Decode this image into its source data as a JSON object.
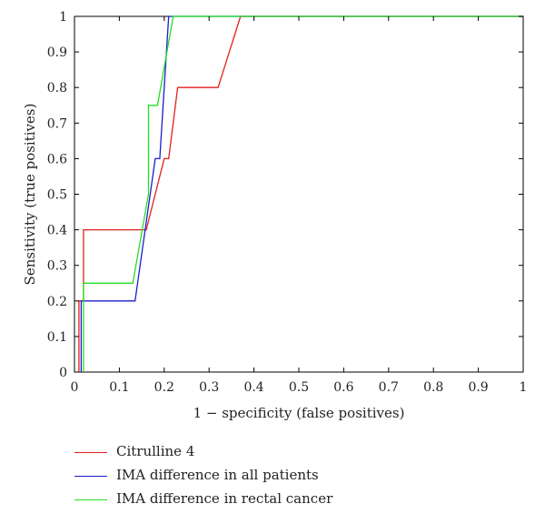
{
  "chart_data": {
    "type": "line",
    "title": "",
    "xlabel": "1 − specificity (false positives)",
    "ylabel": "Sensitivity (true positives)",
    "xlim": [
      0,
      1
    ],
    "ylim": [
      0,
      1
    ],
    "xticks": [
      "0",
      "0.1",
      "0.2",
      "0.3",
      "0.4",
      "0.5",
      "0.6",
      "0.7",
      "0.8",
      "0.9",
      "1"
    ],
    "yticks": [
      "0",
      "0.1",
      "0.2",
      "0.3",
      "0.4",
      "0.5",
      "0.6",
      "0.7",
      "0.8",
      "0.9",
      "1"
    ],
    "grid": false,
    "legend_position": "below",
    "series": [
      {
        "name": "Citrulline 4",
        "color": "#e0201b",
        "x": [
          0.01,
          0.01,
          0.02,
          0.02,
          0.16,
          0.2,
          0.2,
          0.21,
          0.23,
          0.32,
          0.37,
          1.0
        ],
        "y": [
          0.0,
          0.2,
          0.2,
          0.4,
          0.4,
          0.6,
          0.6,
          0.6,
          0.8,
          0.8,
          1.0,
          1.0
        ]
      },
      {
        "name": "IMA difference in all patients",
        "color": "#1c1ccf",
        "x": [
          0.015,
          0.015,
          0.025,
          0.025,
          0.135,
          0.18,
          0.18,
          0.19,
          0.21,
          1.0
        ],
        "y": [
          0.0,
          0.2,
          0.2,
          0.2,
          0.2,
          0.6,
          0.6,
          0.6,
          1.0,
          1.0
        ]
      },
      {
        "name": "IMA difference in rectal cancer",
        "color": "#22e022",
        "x": [
          0.02,
          0.02,
          0.13,
          0.165,
          0.165,
          0.185,
          0.22,
          1.0
        ],
        "y": [
          0.0,
          0.25,
          0.25,
          0.5,
          0.75,
          0.75,
          1.0,
          1.0
        ]
      }
    ]
  }
}
